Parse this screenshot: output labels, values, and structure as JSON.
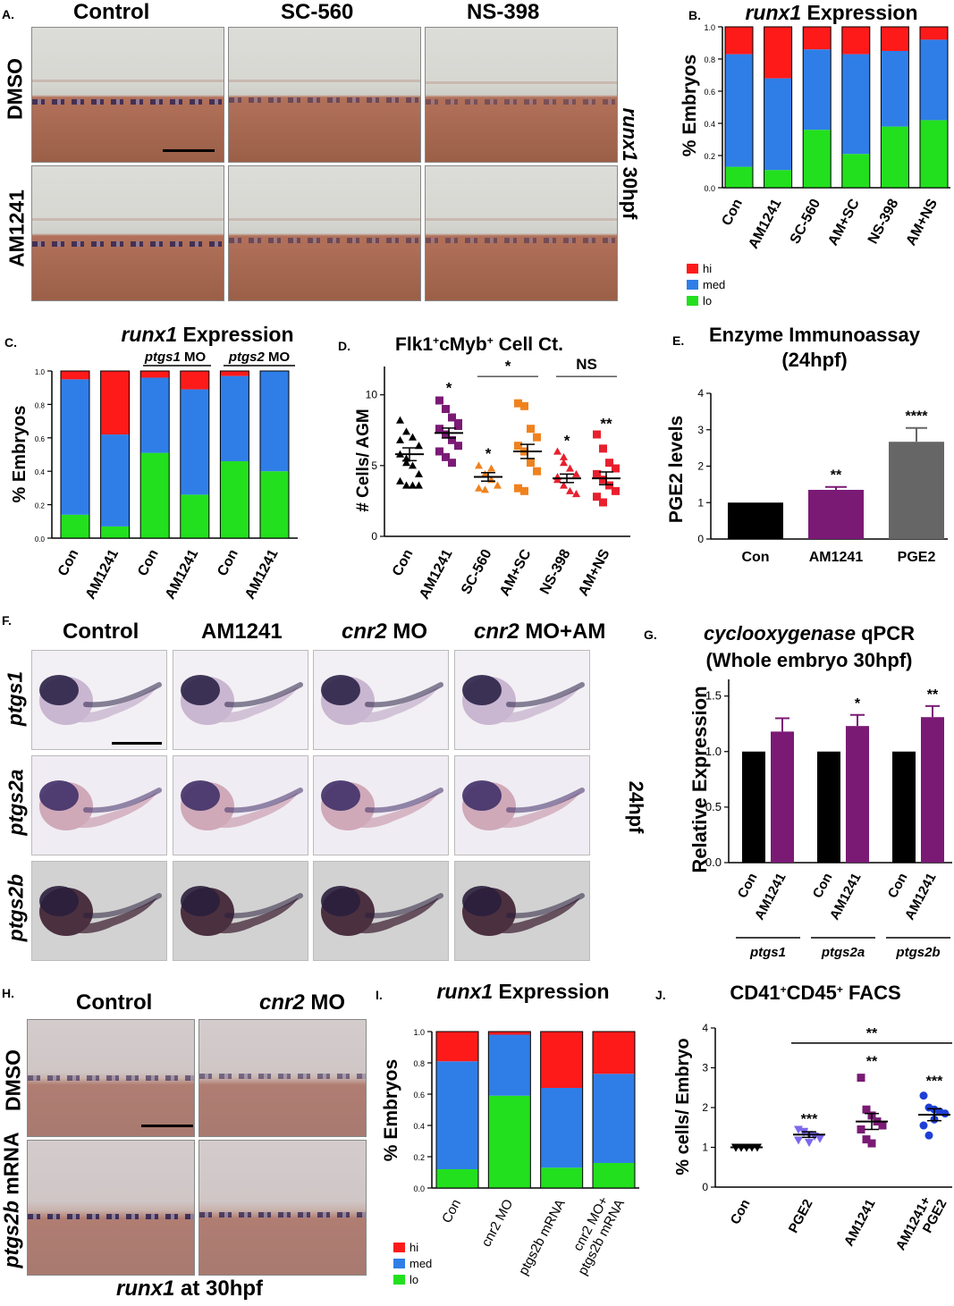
{
  "panel_labels": {
    "A": "A.",
    "B": "B.",
    "C": "C.",
    "D": "D.",
    "E": "E.",
    "F": "F.",
    "G": "G.",
    "H": "H.",
    "I": "I.",
    "J": "J."
  },
  "panelA": {
    "columns": [
      "Control",
      "SC-560",
      "NS-398"
    ],
    "rows": [
      "DMSO",
      "AM1241"
    ],
    "side_label": "runx1 30hpf"
  },
  "panelF": {
    "columns": [
      "Control",
      "AM1241",
      "cnr2 MO",
      "cnr2 MO+AM"
    ],
    "rows": [
      "ptgs1",
      "ptgs2a",
      "ptgs2b"
    ],
    "side_label": "24hpf"
  },
  "panelH": {
    "columns": [
      "Control",
      "cnr2 MO"
    ],
    "rows": [
      "DMSO",
      "ptgs2b mRNA"
    ],
    "bottom_label": "runx1 at 30hpf"
  },
  "legend": {
    "hi": "hi",
    "med": "med",
    "lo": "lo"
  },
  "colors": {
    "hi": "#ff1a1a",
    "med": "#2f7ee8",
    "lo": "#22e01e",
    "black": "#000000",
    "purple": "#7a1a75",
    "gray": "#666666",
    "orange": "#f0821e",
    "red": "#e8202e",
    "blue": "#1f3fd6",
    "lightpurple": "#7b68ee"
  },
  "chart_data": [
    {
      "id": "B",
      "type": "bar",
      "stacked": true,
      "title": "runx1 Expression",
      "ylabel": "% Embryos",
      "ylim": [
        0,
        1.0
      ],
      "yticks": [
        "0.0",
        "0.2",
        "0.4",
        "0.6",
        "0.8",
        "1.0"
      ],
      "categories": [
        "Con",
        "AM1241",
        "SC-560",
        "AM+SC",
        "NS-398",
        "AM+NS"
      ],
      "series": [
        {
          "name": "lo",
          "values": [
            0.13,
            0.11,
            0.36,
            0.21,
            0.38,
            0.42
          ]
        },
        {
          "name": "med",
          "values": [
            0.7,
            0.57,
            0.5,
            0.62,
            0.47,
            0.5
          ]
        },
        {
          "name": "hi",
          "values": [
            0.17,
            0.32,
            0.14,
            0.17,
            0.15,
            0.08
          ]
        }
      ]
    },
    {
      "id": "C",
      "type": "bar",
      "stacked": true,
      "title": "runx1 Expression",
      "ylabel": "% Embryos",
      "ylim": [
        0,
        1.0
      ],
      "yticks": [
        "0.0",
        "0.2",
        "0.4",
        "0.6",
        "0.8",
        "1.0"
      ],
      "categories": [
        "Con",
        "AM1241",
        "Con",
        "AM1241",
        "Con",
        "AM1241"
      ],
      "groups": [
        "ptgs1 MO",
        "ptgs2 MO"
      ],
      "series": [
        {
          "name": "lo",
          "values": [
            0.14,
            0.07,
            0.51,
            0.26,
            0.46,
            0.4
          ]
        },
        {
          "name": "med",
          "values": [
            0.81,
            0.55,
            0.45,
            0.63,
            0.51,
            0.6
          ]
        },
        {
          "name": "hi",
          "values": [
            0.05,
            0.38,
            0.04,
            0.11,
            0.03,
            0.0
          ]
        }
      ]
    },
    {
      "id": "D",
      "type": "scatter",
      "title": "Flk1+cMyb+ Cell Ct.",
      "ylabel": "# Cells/ AGM",
      "ylim": [
        0,
        12
      ],
      "yticks": [
        "0",
        "5",
        "10"
      ],
      "categories": [
        "Con",
        "AM1241",
        "SC-560",
        "AM+SC",
        "NS-398",
        "AM+NS"
      ],
      "means": [
        5.8,
        7.3,
        4.2,
        6.0,
        4.1,
        4.1
      ],
      "sems": [
        0.45,
        0.35,
        0.3,
        0.5,
        0.3,
        0.45
      ],
      "points": [
        [
          8.2,
          7.4,
          7.0,
          6.4,
          5.8,
          5.5,
          5.0,
          4.4,
          3.9,
          3.6,
          3.6,
          3.6,
          6.8,
          5.2
        ],
        [
          9.6,
          9.0,
          8.4,
          8.0,
          7.6,
          7.2,
          6.8,
          6.4,
          6.0,
          5.6,
          5.2,
          7.8
        ],
        [
          5.0,
          4.4,
          4.0,
          3.6,
          3.4,
          3.3,
          4.8
        ],
        [
          9.4,
          9.2,
          7.6,
          7.0,
          6.4,
          6.0,
          5.2,
          4.6,
          3.4,
          3.2
        ],
        [
          6.0,
          5.2,
          4.8,
          4.4,
          4.0,
          3.6,
          3.2,
          3.0,
          4.2,
          5.6
        ],
        [
          7.2,
          6.2,
          5.2,
          4.8,
          4.4,
          4.0,
          3.6,
          3.2,
          2.8,
          2.4
        ]
      ],
      "annotations": [
        "*",
        "*",
        "*",
        "*",
        "**",
        "NS",
        "*"
      ]
    },
    {
      "id": "E",
      "type": "bar",
      "title": "Enzyme Immunoassay (24hpf)",
      "ylabel": "PGE2 levels",
      "ylim": [
        0,
        4
      ],
      "yticks": [
        "0",
        "1",
        "2",
        "3",
        "4"
      ],
      "categories": [
        "Con",
        "AM1241",
        "PGE2"
      ],
      "values": [
        1.0,
        1.35,
        2.67
      ],
      "errors": [
        0,
        0.08,
        0.38
      ],
      "annotations": [
        "",
        "**",
        "****"
      ]
    },
    {
      "id": "G",
      "type": "bar",
      "title": "cyclooxygenase qPCR (Whole embryo 30hpf)",
      "ylabel": "Relative Expression",
      "ylim": [
        0,
        1.5
      ],
      "yticks": [
        "0.0",
        "0.5",
        "1.0",
        "1.5"
      ],
      "categories": [
        "Con",
        "AM1241",
        "Con",
        "AM1241",
        "Con",
        "AM1241"
      ],
      "groups": [
        "ptgs1",
        "ptgs2a",
        "ptgs2b"
      ],
      "values": [
        1.0,
        1.18,
        1.0,
        1.23,
        1.0,
        1.31
      ],
      "errors": [
        0,
        0.12,
        0,
        0.1,
        0,
        0.1
      ],
      "annotations": [
        "",
        "",
        "",
        "*",
        "",
        "**"
      ]
    },
    {
      "id": "I",
      "type": "bar",
      "stacked": true,
      "title": "runx1 Expression",
      "ylabel": "% Embryos",
      "ylim": [
        0,
        1.0
      ],
      "yticks": [
        "0.0",
        "0.2",
        "0.4",
        "0.6",
        "0.8",
        "1.0"
      ],
      "categories": [
        "Con",
        "cnr2 MO",
        "ptgs2b mRNA",
        "cnr2 MO+ ptgs2b mRNA"
      ],
      "series": [
        {
          "name": "lo",
          "values": [
            0.12,
            0.59,
            0.13,
            0.16
          ]
        },
        {
          "name": "med",
          "values": [
            0.69,
            0.39,
            0.51,
            0.57
          ]
        },
        {
          "name": "hi",
          "values": [
            0.19,
            0.02,
            0.36,
            0.27
          ]
        }
      ]
    },
    {
      "id": "J",
      "type": "scatter",
      "title": "CD41+CD45+ FACS",
      "ylabel": "% cells/ Embryo",
      "ylim": [
        0,
        4
      ],
      "yticks": [
        "0",
        "1",
        "2",
        "3",
        "4"
      ],
      "categories": [
        "Con",
        "PGE2",
        "AM1241",
        "AM1241+ PGE2"
      ],
      "means": [
        1.0,
        1.32,
        1.65,
        1.82
      ],
      "sems": [
        0.01,
        0.07,
        0.2,
        0.15
      ],
      "points": [
        [
          1.0,
          1.0,
          1.0,
          1.0,
          1.0,
          1.0,
          1.0,
          1.0
        ],
        [
          1.45,
          1.38,
          1.32,
          1.28,
          1.22,
          1.18,
          1.4,
          1.12
        ],
        [
          2.75,
          1.95,
          1.8,
          1.65,
          1.55,
          1.45,
          1.2,
          1.1
        ],
        [
          2.3,
          2.0,
          1.95,
          1.9,
          1.85,
          1.55,
          1.3,
          1.7
        ]
      ],
      "annotations": [
        "***",
        "**",
        "***",
        "**"
      ]
    }
  ]
}
